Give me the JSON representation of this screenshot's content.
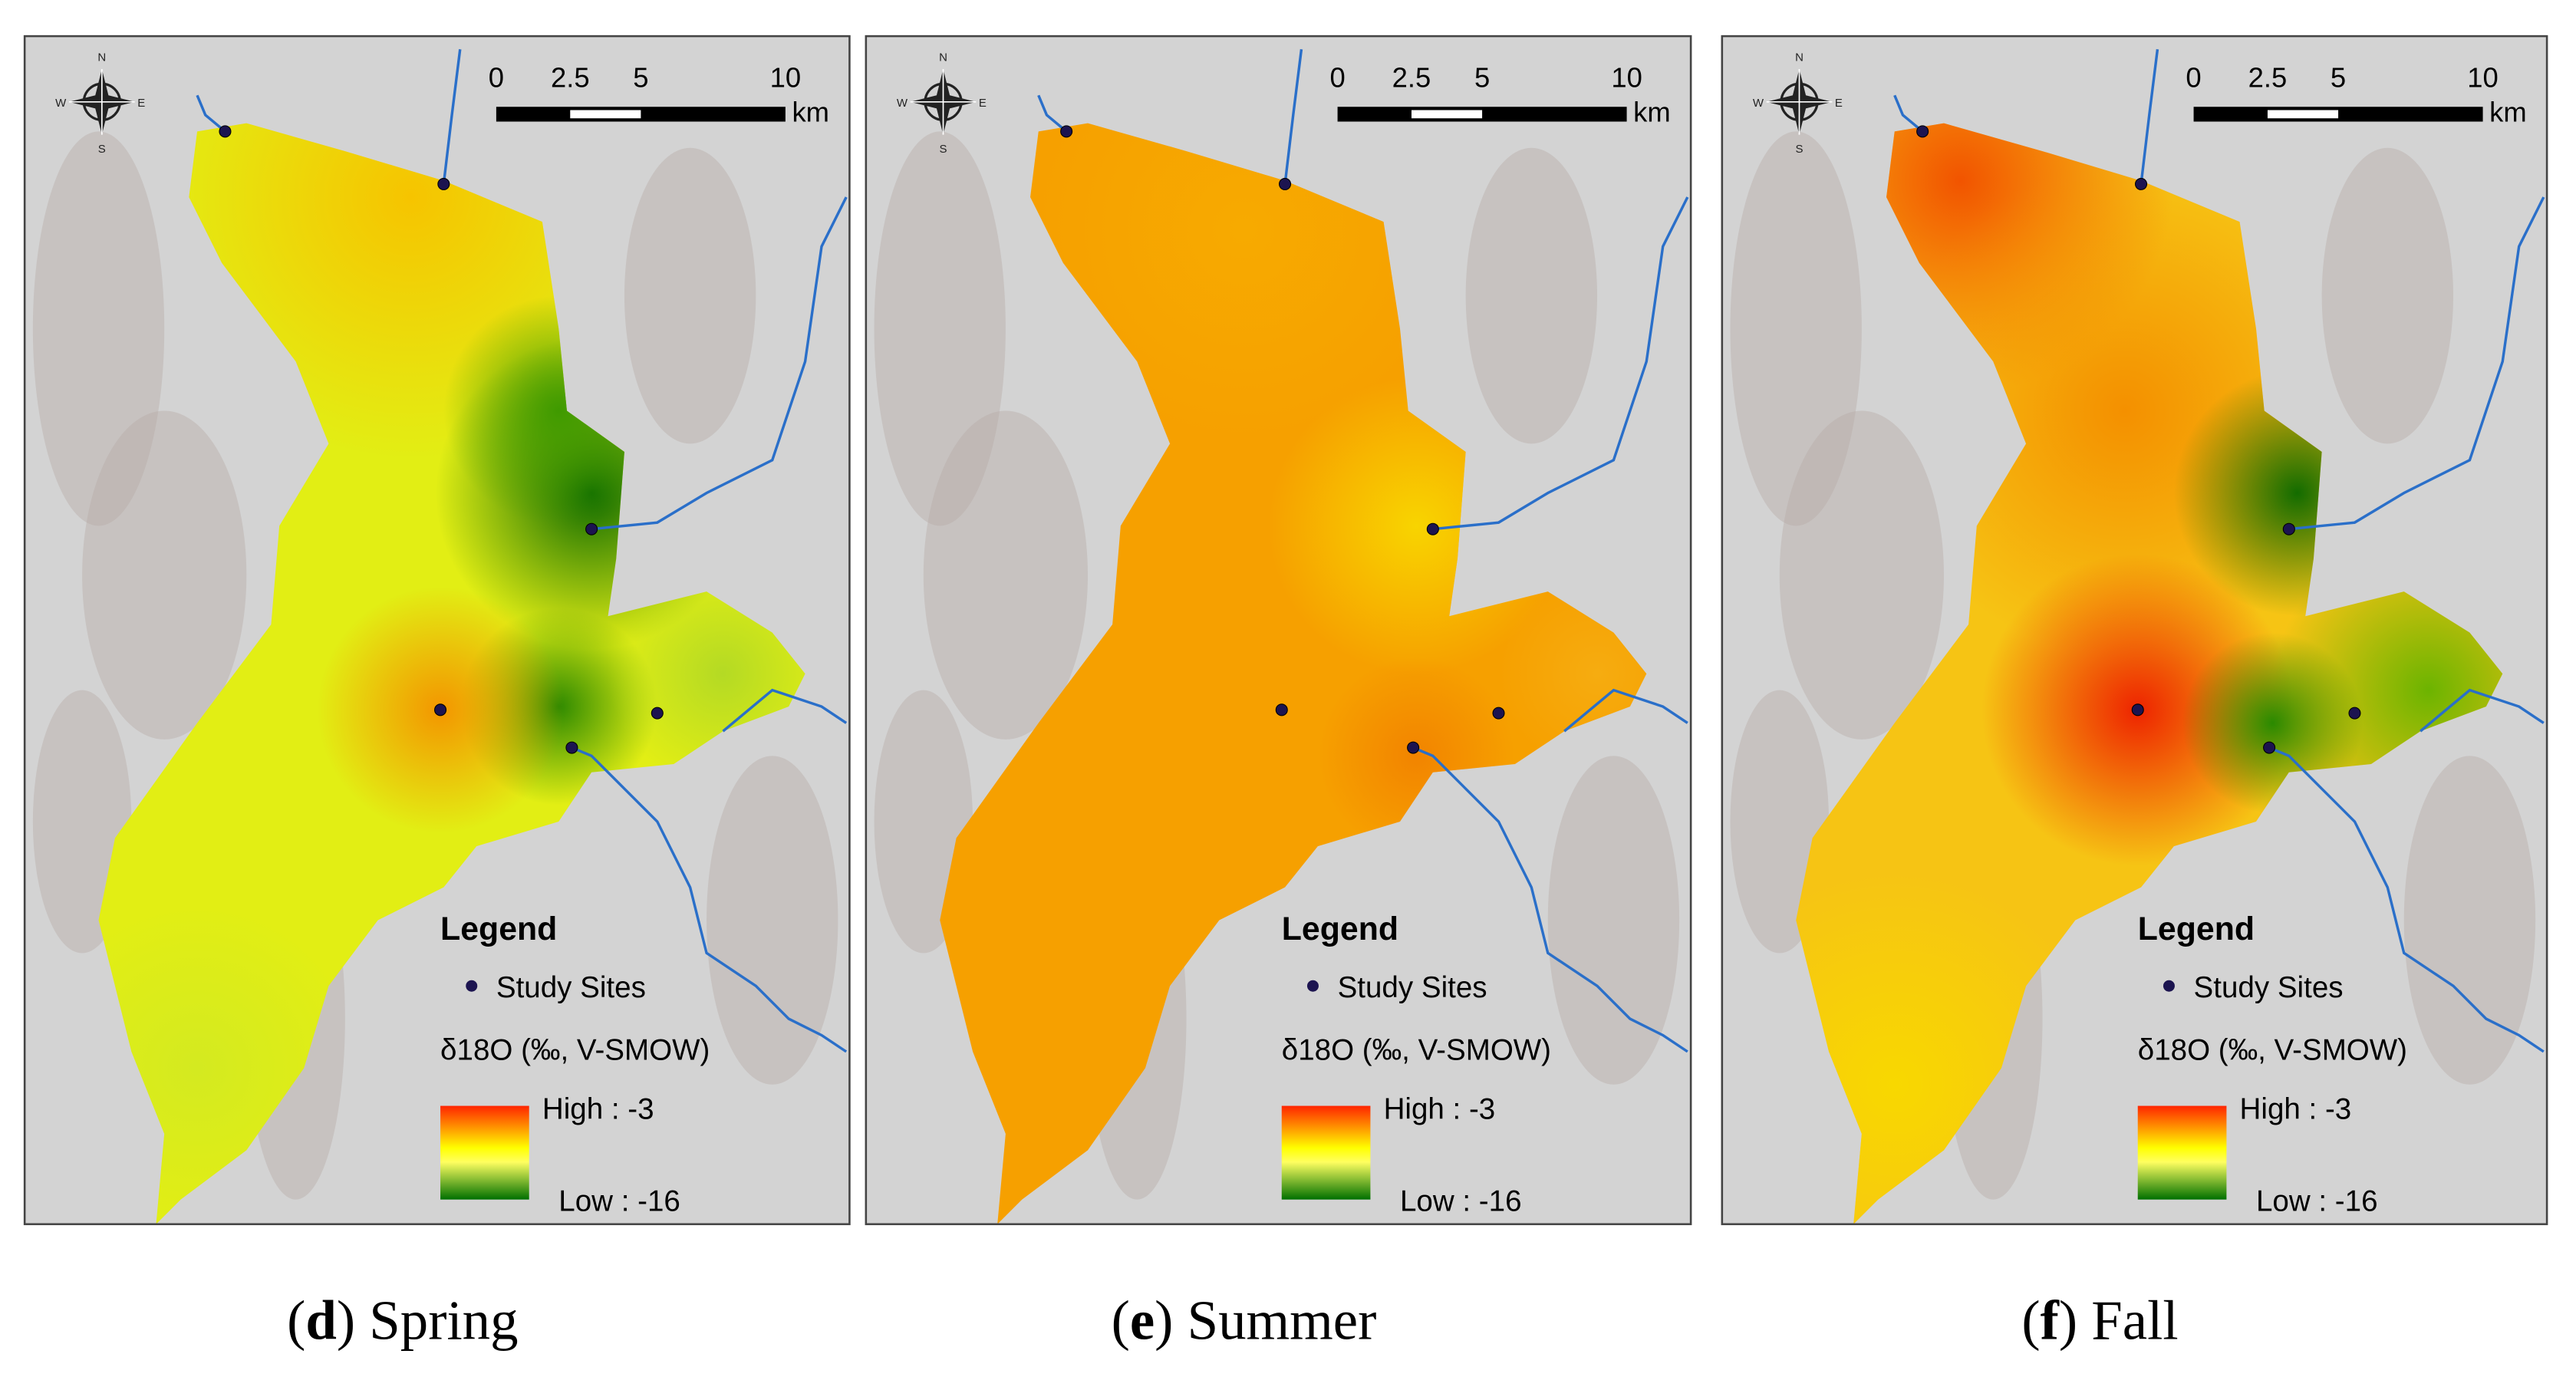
{
  "panels": [
    {
      "caption": [
        "(",
        "d",
        ") Spring"
      ],
      "legend_title": "Legend",
      "sites_label": "Study Sites",
      "variable_label": "δ18O (‰, V-SMOW)",
      "high_label": "High : -3",
      "low_label": "Low : -16",
      "scale_labels": [
        "0",
        "2.5",
        "5",
        "10"
      ],
      "scale_unit": "km",
      "compass": [
        "N",
        "S",
        "E",
        "W"
      ]
    },
    {
      "caption": [
        "(",
        "e",
        ") Summer"
      ],
      "legend_title": "Legend",
      "sites_label": "Study Sites",
      "variable_label": "δ18O (‰, V-SMOW)",
      "high_label": "High : -3",
      "low_label": "Low : -16",
      "scale_labels": [
        "0",
        "2.5",
        "5",
        "10"
      ],
      "scale_unit": "km",
      "compass": [
        "N",
        "S",
        "E",
        "W"
      ]
    },
    {
      "caption": [
        "(",
        "f",
        ") Fall"
      ],
      "legend_title": "Legend",
      "sites_label": "Study Sites",
      "variable_label": "δ18O (‰, V-SMOW)",
      "high_label": "High : -3",
      "low_label": "Low : -16",
      "scale_labels": [
        "0",
        "2.5",
        "5",
        "10"
      ],
      "scale_unit": "km",
      "compass": [
        "N",
        "S",
        "E",
        "W"
      ]
    }
  ]
}
